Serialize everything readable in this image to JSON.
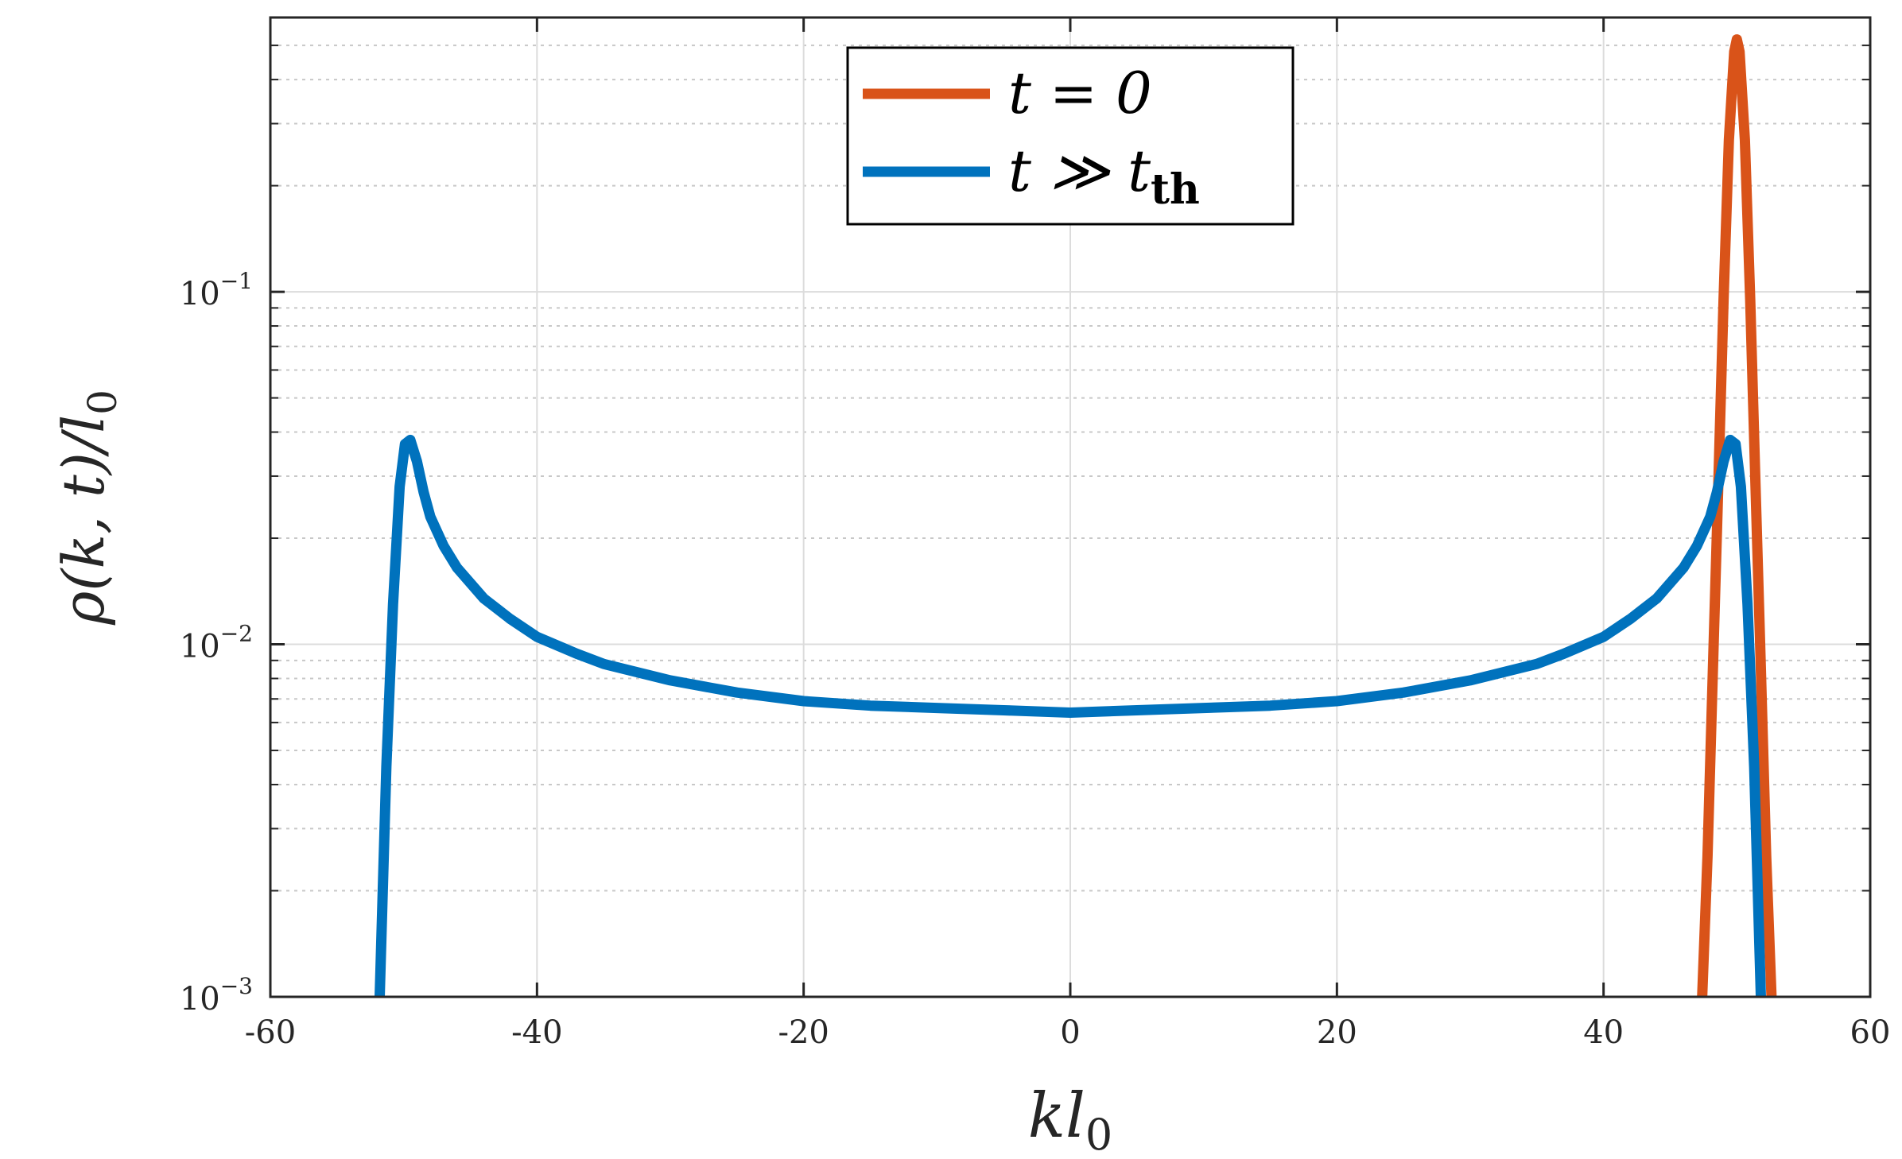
{
  "chart_data": {
    "type": "line",
    "xlabel": {
      "main": "kl",
      "sub": "0"
    },
    "ylabel": {
      "main": "ρ(k, t)/l",
      "sub": "0"
    },
    "xlim": [
      -60,
      60
    ],
    "ylim": [
      0.001,
      0.6
    ],
    "yscale": "log",
    "grid": true,
    "minor_grid": true,
    "legend_position": "top-center",
    "x_ticks": [
      -60,
      -40,
      -20,
      0,
      20,
      40,
      60
    ],
    "x_tick_labels": [
      "-60",
      "-40",
      "-20",
      "0",
      "20",
      "40",
      "60"
    ],
    "y_ticks": [
      0.001,
      0.01,
      0.1
    ],
    "y_tick_labels": [
      {
        "base": "10",
        "exp": "−3"
      },
      {
        "base": "10",
        "exp": "−2"
      },
      {
        "base": "10",
        "exp": "−1"
      }
    ],
    "series": [
      {
        "name": {
          "main": "t = 0",
          "sub": ""
        },
        "color": "#D95319",
        "x": [
          47.4,
          47.8,
          48.2,
          48.6,
          49.0,
          49.4,
          49.8,
          50.0,
          50.2,
          50.6,
          51.0,
          51.4,
          51.8,
          52.2,
          52.6
        ],
        "y": [
          0.001,
          0.0025,
          0.0085,
          0.028,
          0.095,
          0.27,
          0.48,
          0.52,
          0.48,
          0.27,
          0.095,
          0.028,
          0.0085,
          0.0025,
          0.001
        ]
      },
      {
        "name": {
          "main": "t ≫ t",
          "sub": "th"
        },
        "color": "#0072BD",
        "x": [
          -51.8,
          -51.3,
          -50.8,
          -50.3,
          -49.9,
          -49.5,
          -49.0,
          -48.5,
          -48.0,
          -47.0,
          -46.0,
          -44.0,
          -42.0,
          -40.0,
          -37.0,
          -35.0,
          -30.0,
          -25.0,
          -20.0,
          -15.0,
          -10.0,
          -5.0,
          0.0,
          5.0,
          10.0,
          15.0,
          20.0,
          25.0,
          30.0,
          35.0,
          37.0,
          40.0,
          42.0,
          44.0,
          46.0,
          47.0,
          48.0,
          48.5,
          49.0,
          49.5,
          49.9,
          50.3,
          50.8,
          51.3,
          51.8
        ],
        "y": [
          0.001,
          0.0045,
          0.013,
          0.028,
          0.037,
          0.038,
          0.033,
          0.027,
          0.023,
          0.019,
          0.0165,
          0.0135,
          0.0118,
          0.0105,
          0.0094,
          0.0088,
          0.0079,
          0.0073,
          0.0069,
          0.0067,
          0.0066,
          0.0065,
          0.0064,
          0.0065,
          0.0066,
          0.0067,
          0.0069,
          0.0073,
          0.0079,
          0.0088,
          0.0094,
          0.0105,
          0.0118,
          0.0135,
          0.0165,
          0.019,
          0.023,
          0.027,
          0.033,
          0.038,
          0.037,
          0.028,
          0.013,
          0.0045,
          0.001
        ]
      }
    ]
  }
}
